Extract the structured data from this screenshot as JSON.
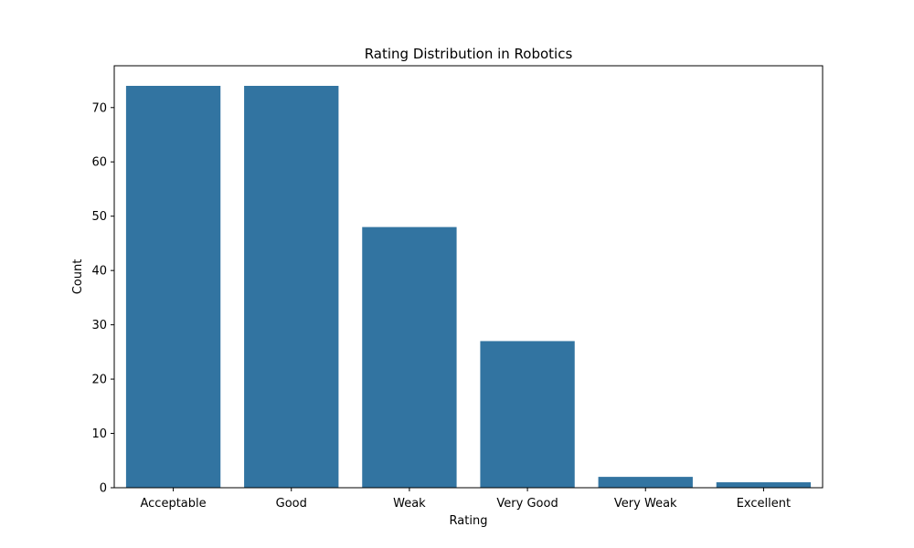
{
  "chart_data": {
    "type": "bar",
    "title": "Rating Distribution in Robotics",
    "xlabel": "Rating",
    "ylabel": "Count",
    "categories": [
      "Acceptable",
      "Good",
      "Weak",
      "Very Good",
      "Very Weak",
      "Excellent"
    ],
    "values": [
      74,
      74,
      48,
      27,
      2,
      1
    ],
    "ylim": [
      0,
      77.7
    ],
    "yticks": [
      0,
      10,
      20,
      30,
      40,
      50,
      60,
      70
    ],
    "ytick_labels": [
      "0",
      "10",
      "20",
      "30",
      "40",
      "50",
      "60",
      "70"
    ],
    "bar_color": "#3274a1",
    "grid": false,
    "legend": "none"
  }
}
